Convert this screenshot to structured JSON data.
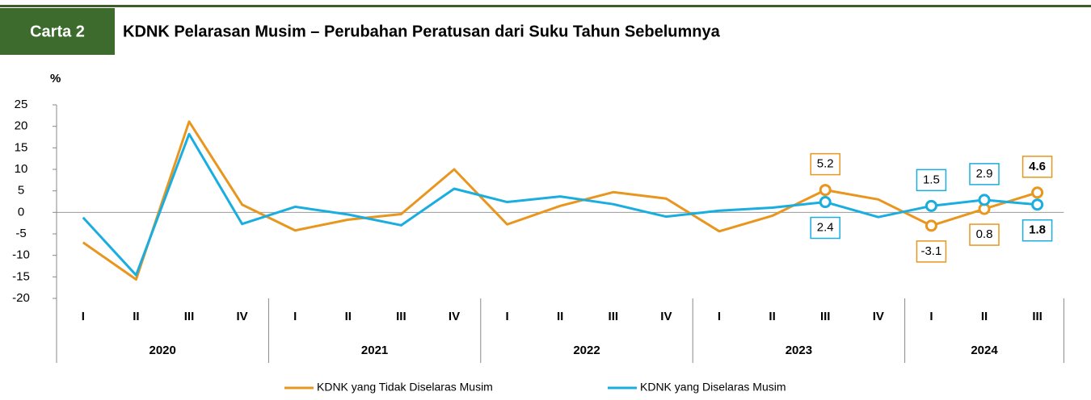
{
  "header": {
    "label": "Carta 2",
    "title": "KDNK Pelarasan Musim – Perubahan Peratusan dari Suku Tahun Sebelumnya"
  },
  "chart_data": {
    "type": "line",
    "y_label": "%",
    "groups": [
      {
        "label": "2020",
        "categories": [
          "I",
          "II",
          "III",
          "IV"
        ]
      },
      {
        "label": "2021",
        "categories": [
          "I",
          "II",
          "III",
          "IV"
        ]
      },
      {
        "label": "2022",
        "categories": [
          "I",
          "II",
          "III",
          "IV"
        ]
      },
      {
        "label": "2023",
        "categories": [
          "I",
          "II",
          "III",
          "IV"
        ]
      },
      {
        "label": "2024",
        "categories": [
          "I",
          "II",
          "III"
        ]
      }
    ],
    "ylim": [
      -20,
      25
    ],
    "yticks": [
      -20,
      -15,
      -10,
      -5,
      0,
      5,
      10,
      15,
      20,
      25
    ],
    "series": [
      {
        "name": "KDNK yang Tidak Diselaras Musim",
        "color": "#E8961E",
        "values": [
          -7.0,
          -15.6,
          21.1,
          1.8,
          -4.2,
          -1.7,
          -0.4,
          10.0,
          -2.8,
          1.5,
          4.7,
          3.2,
          -4.4,
          -0.8,
          5.2,
          3.0,
          -3.1,
          0.8,
          4.6
        ],
        "value_labels": [
          null,
          null,
          null,
          null,
          null,
          null,
          null,
          null,
          null,
          null,
          null,
          null,
          null,
          null,
          "5.2",
          null,
          "-3.1",
          "0.8",
          "4.6"
        ]
      },
      {
        "name": "KDNK yang Diselaras Musim",
        "color": "#1AADE0",
        "values": [
          -1.2,
          -14.6,
          18.2,
          -2.7,
          1.3,
          -0.5,
          -3.0,
          5.5,
          2.4,
          3.7,
          1.9,
          -1.0,
          0.4,
          1.1,
          2.4,
          -1.1,
          1.5,
          2.9,
          1.8
        ],
        "value_labels": [
          null,
          null,
          null,
          null,
          null,
          null,
          null,
          null,
          null,
          null,
          null,
          null,
          null,
          null,
          "2.4",
          null,
          "1.5",
          "2.9",
          "1.8"
        ]
      }
    ]
  }
}
